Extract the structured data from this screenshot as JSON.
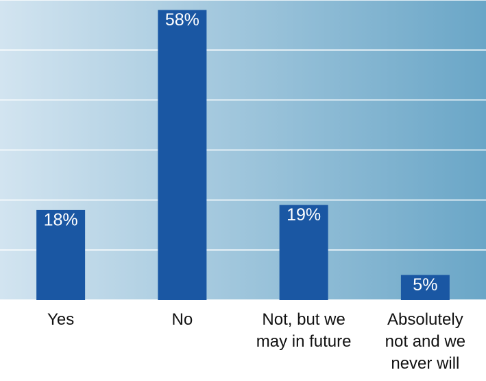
{
  "chart_data": {
    "type": "bar",
    "categories": [
      "Yes",
      "No",
      "Not, but we may in future",
      "Absolutely not and we never will"
    ],
    "values": [
      18,
      58,
      19,
      5
    ],
    "value_labels": [
      "18%",
      "58%",
      "19%",
      "5%"
    ],
    "color": "#1a57a3",
    "ylim": [
      0,
      60
    ],
    "yticks": [
      0,
      10,
      20,
      30,
      40,
      50,
      60
    ],
    "grid": true
  }
}
